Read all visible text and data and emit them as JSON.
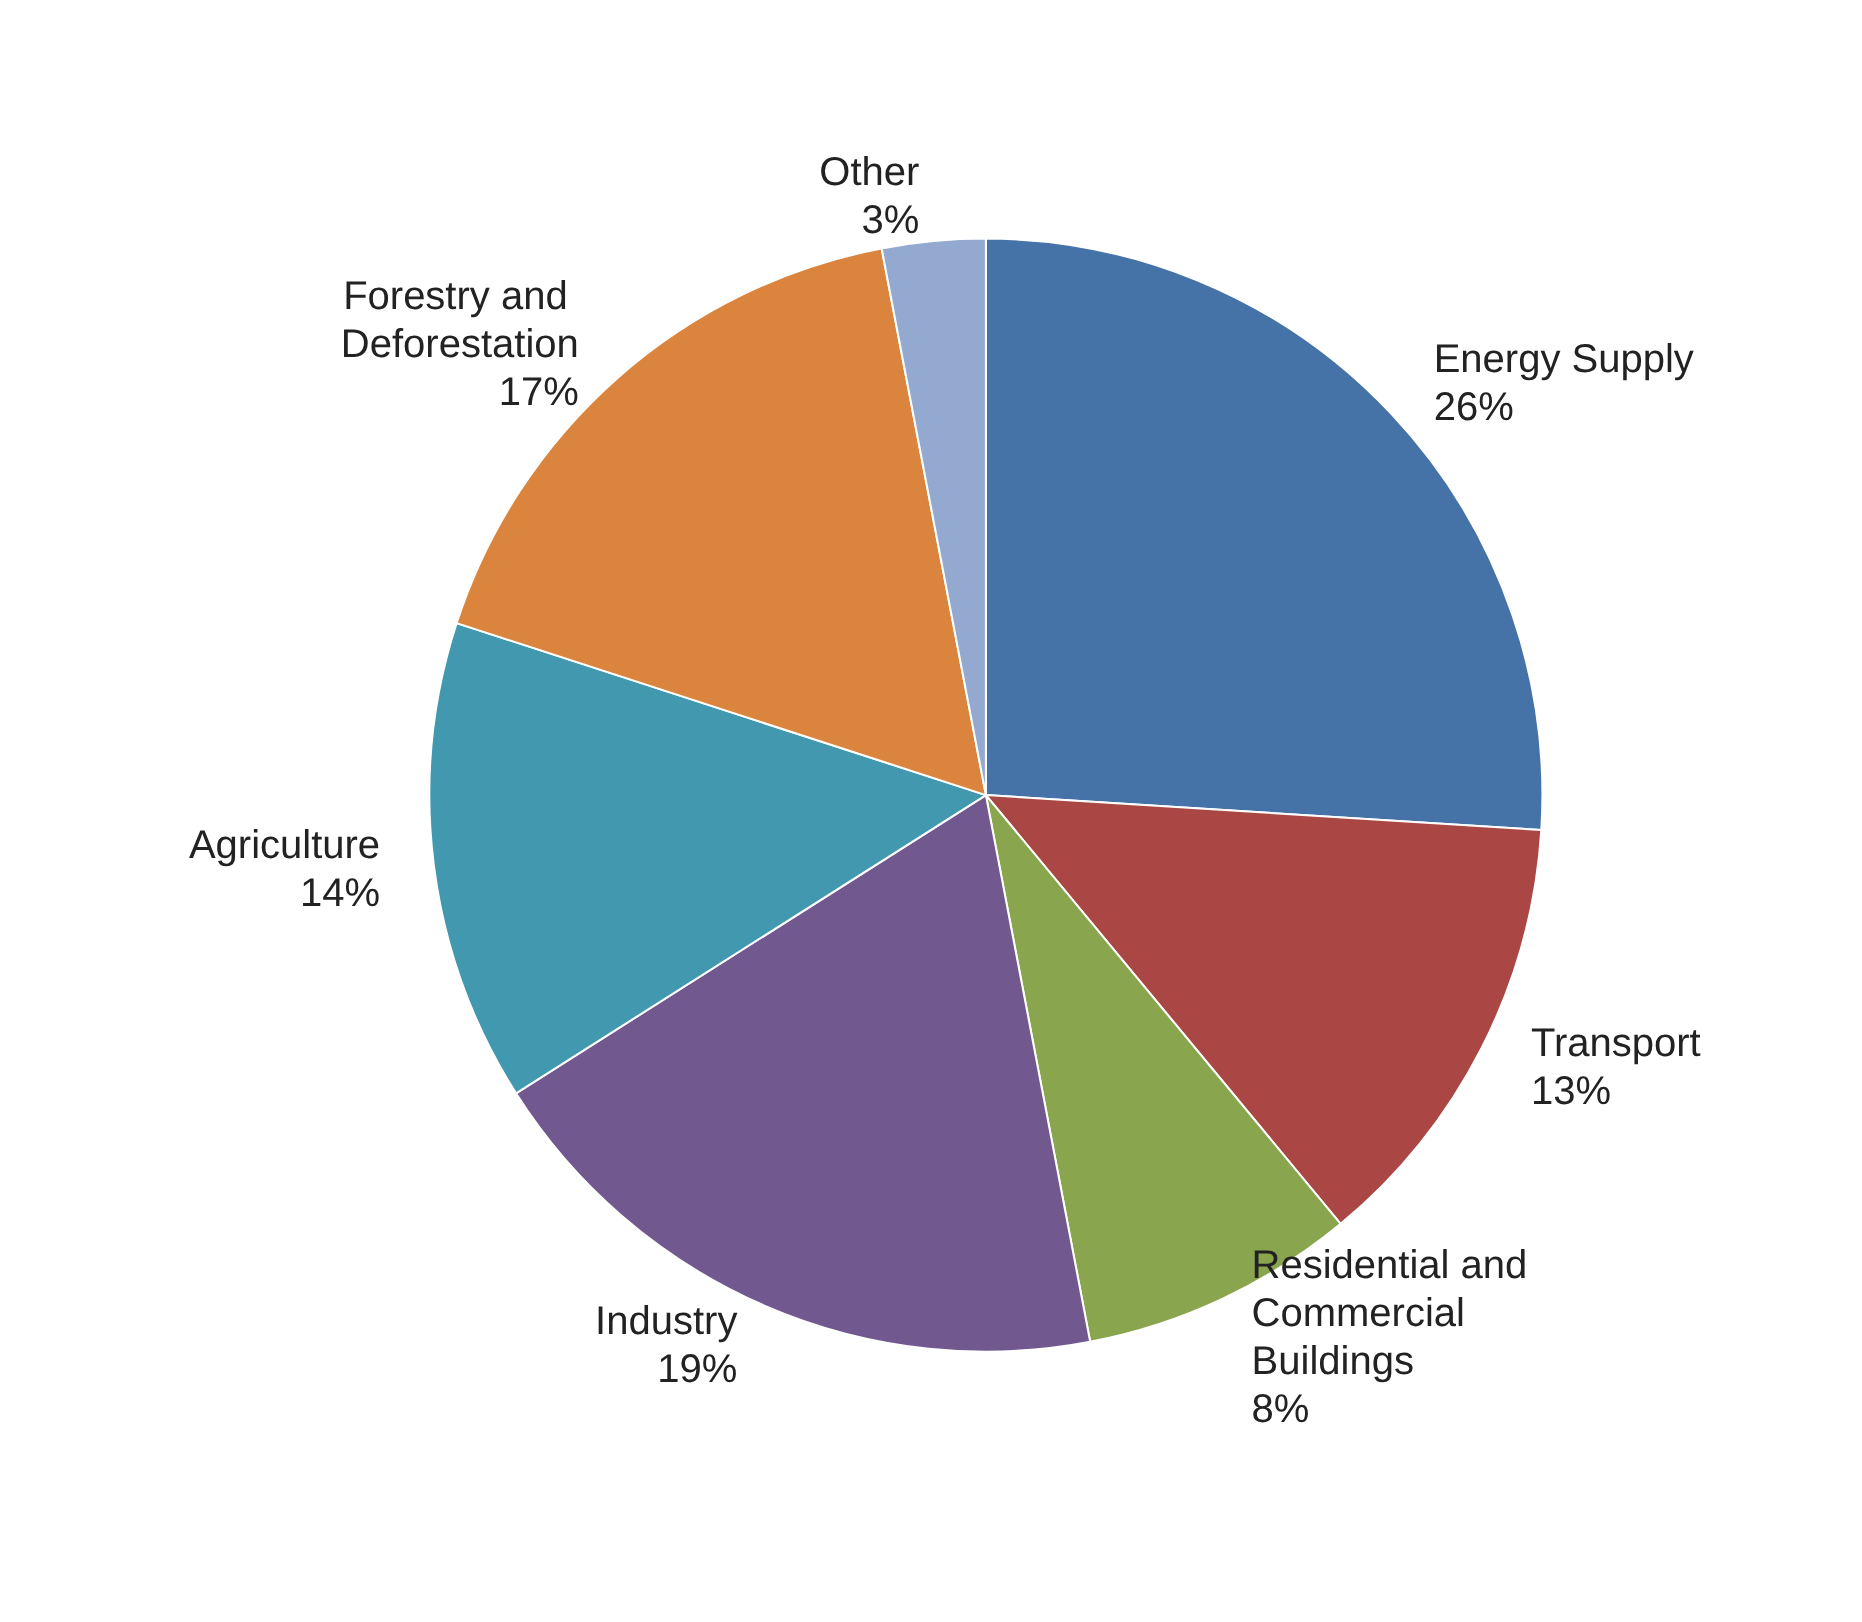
{
  "chart_data": {
    "type": "pie",
    "categories": [
      "Energy Supply",
      "Transport",
      "Residential and Commercial Buildings",
      "Industry",
      "Agriculture",
      "Forestry and Deforestation",
      "Other"
    ],
    "values": [
      26,
      13,
      8,
      19,
      14,
      17,
      3
    ],
    "value_labels": [
      "26%",
      "13%",
      "8%",
      "19%",
      "14%",
      "17%",
      "3%"
    ],
    "colors": [
      "#4572a7",
      "#aa4643",
      "#89a54e",
      "#71588f",
      "#4198af",
      "#db843d",
      "#93a9cf"
    ],
    "legend": false
  }
}
